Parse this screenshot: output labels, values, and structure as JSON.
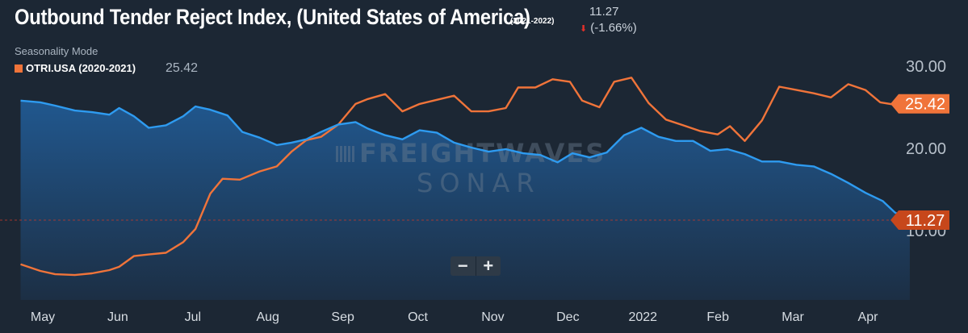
{
  "header": {
    "title": "Outbound Tender Reject Index, (United States of America)",
    "title_period": "(2021-2022)",
    "current_value": "11.27",
    "current_change": "(-1.66%)",
    "change_direction_icon": "down-arrow-icon",
    "seasonality_mode": "Seasonality Mode",
    "legend_label": "OTRI.USA (2020-2021)",
    "legend_value": "25.42"
  },
  "watermark": {
    "line1": "FREIGHTWAVES",
    "line2": "SONAR"
  },
  "zoom": {
    "minus": "−",
    "plus": "+"
  },
  "colors": {
    "background": "#1c2734",
    "current_series": "#2e9bf0",
    "seasonal_series": "#f0743a",
    "current_badge": "#c7471b",
    "seasonal_badge": "#f0743a"
  },
  "chart_data": {
    "type": "line",
    "y_ticks": [
      "30.00",
      "20.00",
      "10.00"
    ],
    "x_ticks": [
      "May",
      "Jun",
      "Jul",
      "Aug",
      "Sep",
      "Oct",
      "Nov",
      "Dec",
      "2022",
      "Feb",
      "Mar",
      "Apr"
    ],
    "ylim": [
      3.5,
      34.5
    ],
    "grid": false,
    "series": [
      {
        "name": "OTRI.USA (2021-2022)",
        "end_label": "11.27",
        "points": [
          [
            "2021-04-22",
            25.8
          ],
          [
            "2021-04-30",
            25.6
          ],
          [
            "2021-05-06",
            25.2
          ],
          [
            "2021-05-14",
            24.6
          ],
          [
            "2021-05-21",
            24.4
          ],
          [
            "2021-05-28",
            24.1
          ],
          [
            "2021-06-01",
            24.9
          ],
          [
            "2021-06-07",
            23.9
          ],
          [
            "2021-06-13",
            22.5
          ],
          [
            "2021-06-20",
            22.8
          ],
          [
            "2021-06-27",
            23.9
          ],
          [
            "2021-07-02",
            25.1
          ],
          [
            "2021-07-08",
            24.7
          ],
          [
            "2021-07-15",
            24.0
          ],
          [
            "2021-07-21",
            22.0
          ],
          [
            "2021-07-28",
            21.3
          ],
          [
            "2021-08-04",
            20.4
          ],
          [
            "2021-08-10",
            20.7
          ],
          [
            "2021-08-16",
            21.1
          ],
          [
            "2021-08-22",
            22.0
          ],
          [
            "2021-08-29",
            22.9
          ],
          [
            "2021-09-05",
            23.2
          ],
          [
            "2021-09-10",
            22.4
          ],
          [
            "2021-09-17",
            21.6
          ],
          [
            "2021-09-24",
            21.1
          ],
          [
            "2021-10-01",
            22.2
          ],
          [
            "2021-10-08",
            21.9
          ],
          [
            "2021-10-15",
            20.7
          ],
          [
            "2021-10-22",
            20.1
          ],
          [
            "2021-10-29",
            19.6
          ],
          [
            "2021-11-05",
            19.9
          ],
          [
            "2021-11-12",
            19.4
          ],
          [
            "2021-11-19",
            19.2
          ],
          [
            "2021-11-26",
            18.3
          ],
          [
            "2021-12-02",
            19.4
          ],
          [
            "2021-12-09",
            18.9
          ],
          [
            "2021-12-16",
            19.5
          ],
          [
            "2021-12-23",
            21.6
          ],
          [
            "2021-12-30",
            22.5
          ],
          [
            "2022-01-06",
            21.4
          ],
          [
            "2022-01-13",
            20.9
          ],
          [
            "2022-01-20",
            20.9
          ],
          [
            "2022-01-27",
            19.7
          ],
          [
            "2022-02-03",
            19.9
          ],
          [
            "2022-02-10",
            19.3
          ],
          [
            "2022-02-17",
            18.4
          ],
          [
            "2022-02-24",
            18.4
          ],
          [
            "2022-03-03",
            18.0
          ],
          [
            "2022-03-10",
            17.8
          ],
          [
            "2022-03-17",
            16.9
          ],
          [
            "2022-03-24",
            15.8
          ],
          [
            "2022-03-31",
            14.6
          ],
          [
            "2022-04-07",
            13.6
          ],
          [
            "2022-04-12",
            12.2
          ],
          [
            "2022-04-18",
            11.27
          ]
        ]
      },
      {
        "name": "OTRI.USA (2020-2021)",
        "end_label": "25.42",
        "points": [
          [
            "2021-04-22",
            5.9
          ],
          [
            "2021-04-30",
            5.1
          ],
          [
            "2021-05-06",
            4.7
          ],
          [
            "2021-05-14",
            4.6
          ],
          [
            "2021-05-21",
            4.8
          ],
          [
            "2021-05-28",
            5.2
          ],
          [
            "2021-06-01",
            5.6
          ],
          [
            "2021-06-07",
            6.9
          ],
          [
            "2021-06-13",
            7.1
          ],
          [
            "2021-06-20",
            7.3
          ],
          [
            "2021-06-27",
            8.6
          ],
          [
            "2021-07-02",
            10.2
          ],
          [
            "2021-07-08",
            14.5
          ],
          [
            "2021-07-13",
            16.3
          ],
          [
            "2021-07-20",
            16.2
          ],
          [
            "2021-07-28",
            17.2
          ],
          [
            "2021-08-04",
            17.8
          ],
          [
            "2021-08-10",
            19.6
          ],
          [
            "2021-08-16",
            21.0
          ],
          [
            "2021-08-22",
            21.4
          ],
          [
            "2021-08-29",
            22.9
          ],
          [
            "2021-09-05",
            25.4
          ],
          [
            "2021-09-10",
            26.0
          ],
          [
            "2021-09-17",
            26.6
          ],
          [
            "2021-09-24",
            24.5
          ],
          [
            "2021-10-01",
            25.4
          ],
          [
            "2021-10-08",
            25.9
          ],
          [
            "2021-10-15",
            26.4
          ],
          [
            "2021-10-22",
            24.5
          ],
          [
            "2021-10-29",
            24.5
          ],
          [
            "2021-11-05",
            24.9
          ],
          [
            "2021-11-10",
            27.4
          ],
          [
            "2021-11-17",
            27.4
          ],
          [
            "2021-11-24",
            28.4
          ],
          [
            "2021-12-01",
            28.1
          ],
          [
            "2021-12-06",
            25.8
          ],
          [
            "2021-12-13",
            25.0
          ],
          [
            "2021-12-19",
            28.1
          ],
          [
            "2021-12-26",
            28.6
          ],
          [
            "2022-01-02",
            25.5
          ],
          [
            "2022-01-09",
            23.5
          ],
          [
            "2022-01-16",
            22.8
          ],
          [
            "2022-01-23",
            22.1
          ],
          [
            "2022-01-30",
            21.7
          ],
          [
            "2022-02-04",
            22.7
          ],
          [
            "2022-02-10",
            20.9
          ],
          [
            "2022-02-17",
            23.4
          ],
          [
            "2022-02-24",
            27.5
          ],
          [
            "2022-03-03",
            27.1
          ],
          [
            "2022-03-10",
            26.7
          ],
          [
            "2022-03-17",
            26.2
          ],
          [
            "2022-03-24",
            27.8
          ],
          [
            "2022-03-31",
            27.1
          ],
          [
            "2022-04-06",
            25.6
          ],
          [
            "2022-04-12",
            25.3
          ],
          [
            "2022-04-18",
            25.42
          ]
        ]
      }
    ],
    "reference_line": 11.27
  }
}
